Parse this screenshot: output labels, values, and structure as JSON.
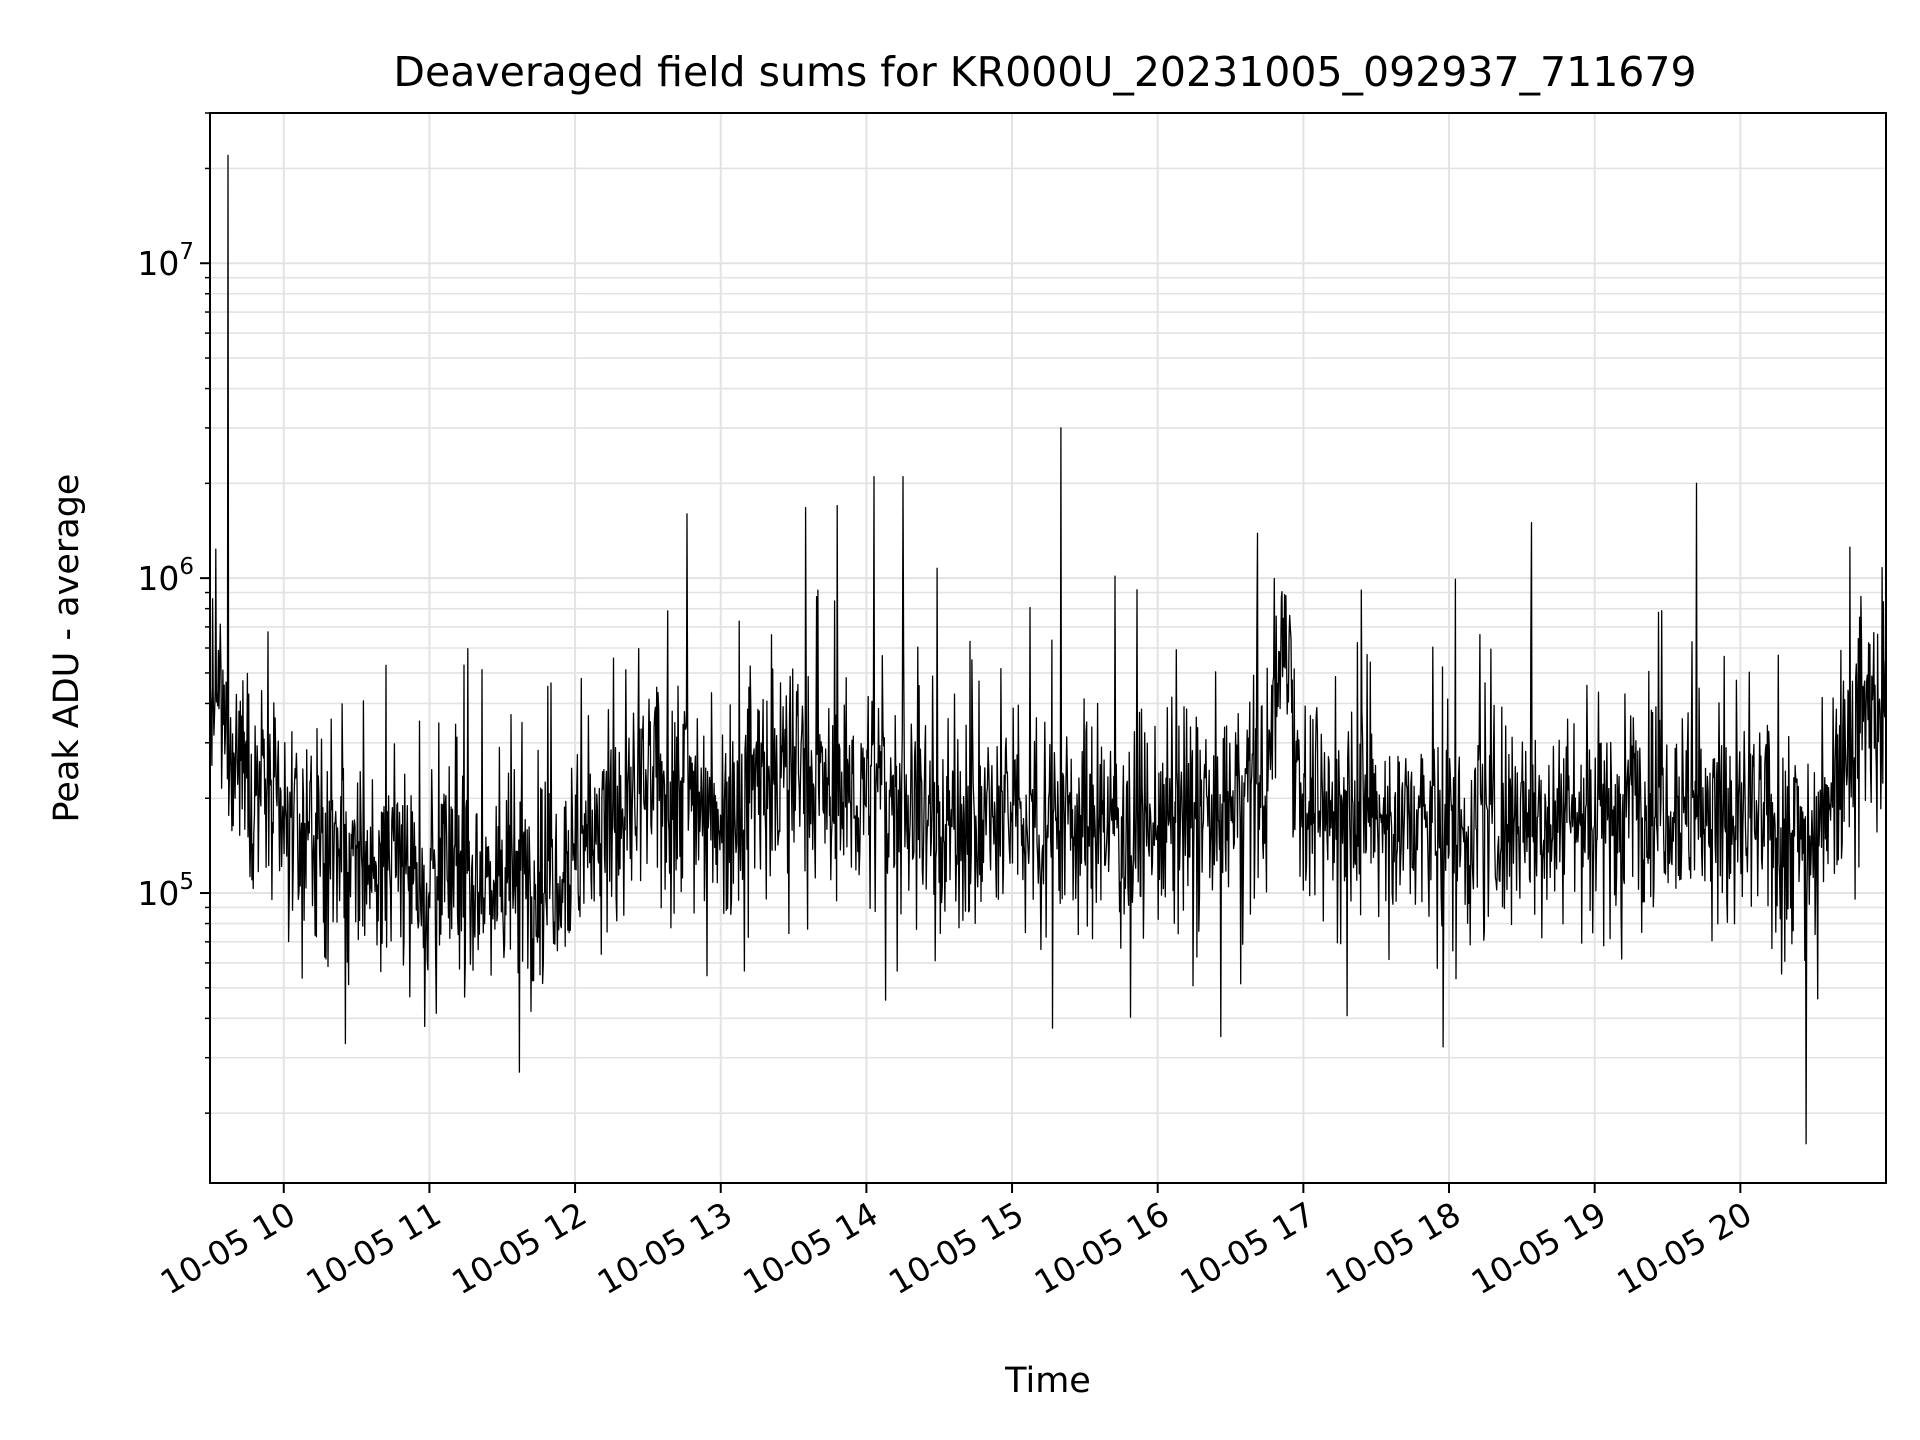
{
  "chart_data": {
    "type": "line",
    "title": "Deaveraged field sums for KR000U_20231005_092937_711679",
    "xlabel": "Time",
    "ylabel": "Peak ADU - average",
    "yscale": "log",
    "ylim": [
      12000,
      30000000
    ],
    "xlim": [
      "2023-10-05 09:29:37",
      "2023-10-05 21:00:00"
    ],
    "grid": "major and minor",
    "line_color": "#000000",
    "x_ticks": [
      {
        "time": "2023-10-05 10:00",
        "label": "10-05 10"
      },
      {
        "time": "2023-10-05 11:00",
        "label": "10-05 11"
      },
      {
        "time": "2023-10-05 12:00",
        "label": "10-05 12"
      },
      {
        "time": "2023-10-05 13:00",
        "label": "10-05 13"
      },
      {
        "time": "2023-10-05 14:00",
        "label": "10-05 14"
      },
      {
        "time": "2023-10-05 15:00",
        "label": "10-05 15"
      },
      {
        "time": "2023-10-05 16:00",
        "label": "10-05 16"
      },
      {
        "time": "2023-10-05 17:00",
        "label": "10-05 17"
      },
      {
        "time": "2023-10-05 18:00",
        "label": "10-05 18"
      },
      {
        "time": "2023-10-05 19:00",
        "label": "10-05 19"
      },
      {
        "time": "2023-10-05 20:00",
        "label": "10-05 20"
      }
    ],
    "y_ticks": [
      {
        "value": 100000,
        "base": "10",
        "exp": "5"
      },
      {
        "value": 1000000,
        "base": "10",
        "exp": "6"
      },
      {
        "value": 10000000,
        "base": "10",
        "exp": "7"
      }
    ],
    "series": [
      {
        "values_note": "approximate trace read from the figure",
        "x": [
          "2023-10-05 09:30",
          "2023-10-05 09:40",
          "2023-10-05 09:50",
          "2023-10-05 10:00",
          "2023-10-05 10:15",
          "2023-10-05 10:30",
          "2023-10-05 10:45",
          "2023-10-05 11:00",
          "2023-10-05 11:15",
          "2023-10-05 11:30",
          "2023-10-05 11:45",
          "2023-10-05 12:00",
          "2023-10-05 12:15",
          "2023-10-05 12:30",
          "2023-10-05 12:45",
          "2023-10-05 13:00",
          "2023-10-05 13:15",
          "2023-10-05 13:30",
          "2023-10-05 13:45",
          "2023-10-05 14:00",
          "2023-10-05 14:15",
          "2023-10-05 14:30",
          "2023-10-05 14:45",
          "2023-10-05 15:00",
          "2023-10-05 15:15",
          "2023-10-05 15:30",
          "2023-10-05 15:45",
          "2023-10-05 16:00",
          "2023-10-05 16:15",
          "2023-10-05 16:30",
          "2023-10-05 16:45",
          "2023-10-05 16:53",
          "2023-10-05 17:00",
          "2023-10-05 17:15",
          "2023-10-05 17:30",
          "2023-10-05 17:45",
          "2023-10-05 18:00",
          "2023-10-05 18:15",
          "2023-10-05 18:30",
          "2023-10-05 18:45",
          "2023-10-05 19:00",
          "2023-10-05 19:15",
          "2023-10-05 19:30",
          "2023-10-05 19:45",
          "2023-10-05 20:00",
          "2023-10-05 20:15",
          "2023-10-05 20:30",
          "2023-10-05 20:45",
          "2023-10-05 21:00"
        ],
        "y": [
          400000,
          300000,
          220000,
          170000,
          140000,
          120000,
          125000,
          120000,
          115000,
          110000,
          115000,
          140000,
          170000,
          210000,
          230000,
          180000,
          230000,
          260000,
          200000,
          210000,
          200000,
          170000,
          160000,
          175000,
          180000,
          170000,
          165000,
          160000,
          175000,
          190000,
          230000,
          800000,
          170000,
          190000,
          175000,
          165000,
          160000,
          165000,
          170000,
          180000,
          185000,
          200000,
          210000,
          180000,
          170000,
          160000,
          150000,
          350000,
          400000
        ],
        "spikes": [
          {
            "time": "2023-10-05 09:37",
            "value": 22000000
          },
          {
            "time": "2023-10-05 12:46",
            "value": 1600000
          },
          {
            "time": "2023-10-05 13:48",
            "value": 1700000
          },
          {
            "time": "2023-10-05 14:03",
            "value": 2100000
          },
          {
            "time": "2023-10-05 14:15",
            "value": 2100000
          },
          {
            "time": "2023-10-05 15:20",
            "value": 3000000
          },
          {
            "time": "2023-10-05 18:34",
            "value": 1500000
          },
          {
            "time": "2023-10-05 19:42",
            "value": 2000000
          },
          {
            "time": "2023-10-05 11:37",
            "value": 27000
          },
          {
            "time": "2023-10-05 20:27",
            "value": 16000
          }
        ]
      }
    ]
  }
}
